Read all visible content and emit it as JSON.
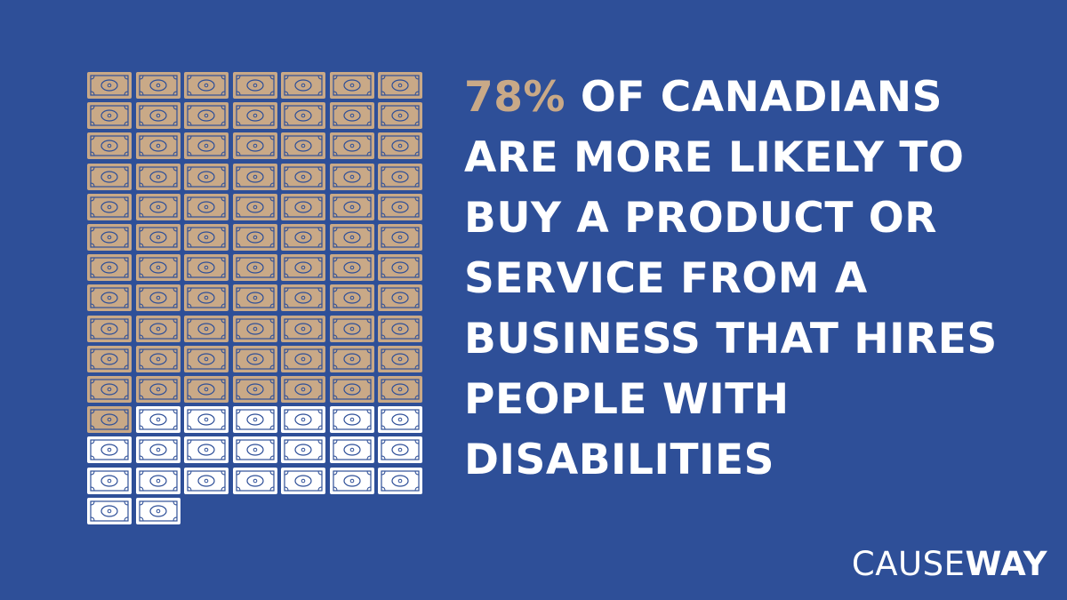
{
  "colors": {
    "background": "#2e4f98",
    "filled_bill": "#c9a987",
    "empty_bill": "#ffffff",
    "bill_stroke": "#2e4f98",
    "text": "#ffffff",
    "highlight": "#c9a987"
  },
  "icon": "dollar-bill-icon",
  "chart_data": {
    "type": "pictograph",
    "total_icons": 100,
    "filled_icons": 78,
    "columns": 7,
    "value_percent": 78
  },
  "headline": {
    "stat": "78%",
    "text": " OF CANADIANS ARE MORE LIKELY TO BUY A PRODUCT OR SERVICE FROM A BUSINESS THAT HIRES PEOPLE WITH DISABILITIES"
  },
  "logo": {
    "light": "CAUSE",
    "bold": "WAY"
  }
}
